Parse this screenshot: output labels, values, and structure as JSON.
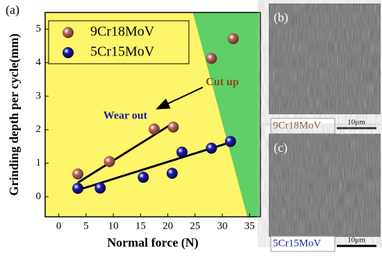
{
  "chart_data": {
    "type": "scatter",
    "panel_label": "(a)",
    "x_label": "Normal force (N)",
    "y_label": "Grinding depth per cycle(mm)",
    "xlim": [
      -2.5,
      37
    ],
    "ylim": [
      -0.6,
      5.5
    ],
    "xticks": [
      0,
      5,
      10,
      15,
      20,
      25,
      30,
      35
    ],
    "yticks": [
      0,
      1,
      2,
      3,
      4,
      5
    ],
    "background": "#fdf56a",
    "region_color": "#5fcf68",
    "region_boundary": {
      "x": [
        24.6,
        34.6
      ],
      "values": [
        5.5,
        -0.6
      ]
    },
    "series": [
      {
        "name": "9Cr18MoV",
        "color": "#b86a5c",
        "x": [
          3.5,
          9.3,
          17.5,
          21,
          28,
          32
        ],
        "values": [
          0.68,
          1.05,
          2.02,
          2.08,
          4.13,
          4.72
        ]
      },
      {
        "name": "5Cr15MoV",
        "color": "#1c1ca8",
        "x": [
          3.5,
          7.6,
          15.5,
          20.8,
          22.6,
          28,
          31.5
        ],
        "values": [
          0.25,
          0.26,
          0.58,
          0.7,
          1.33,
          1.45,
          1.65
        ]
      }
    ],
    "fit_lines": [
      {
        "x": [
          3.5,
          21
        ],
        "values": [
          0.42,
          2.2
        ]
      },
      {
        "x": [
          3.5,
          32
        ],
        "values": [
          0.2,
          1.65
        ]
      }
    ],
    "annotations": [
      {
        "text": "Cut up",
        "color": "#8b4a1c",
        "x": 30,
        "y": 3.4
      },
      {
        "text": "Wear out",
        "color": "#1c1ca8",
        "x": 12.2,
        "y": 2.4
      }
    ]
  },
  "panels": [
    {
      "label": "(b)",
      "caption": "9Cr18MoV",
      "caption_color": "#8b4a1c",
      "scale": "10μm"
    },
    {
      "label": "(c)",
      "caption": "5Cr15MoV",
      "caption_color": "#1c1ca8",
      "scale": "10μm"
    }
  ]
}
